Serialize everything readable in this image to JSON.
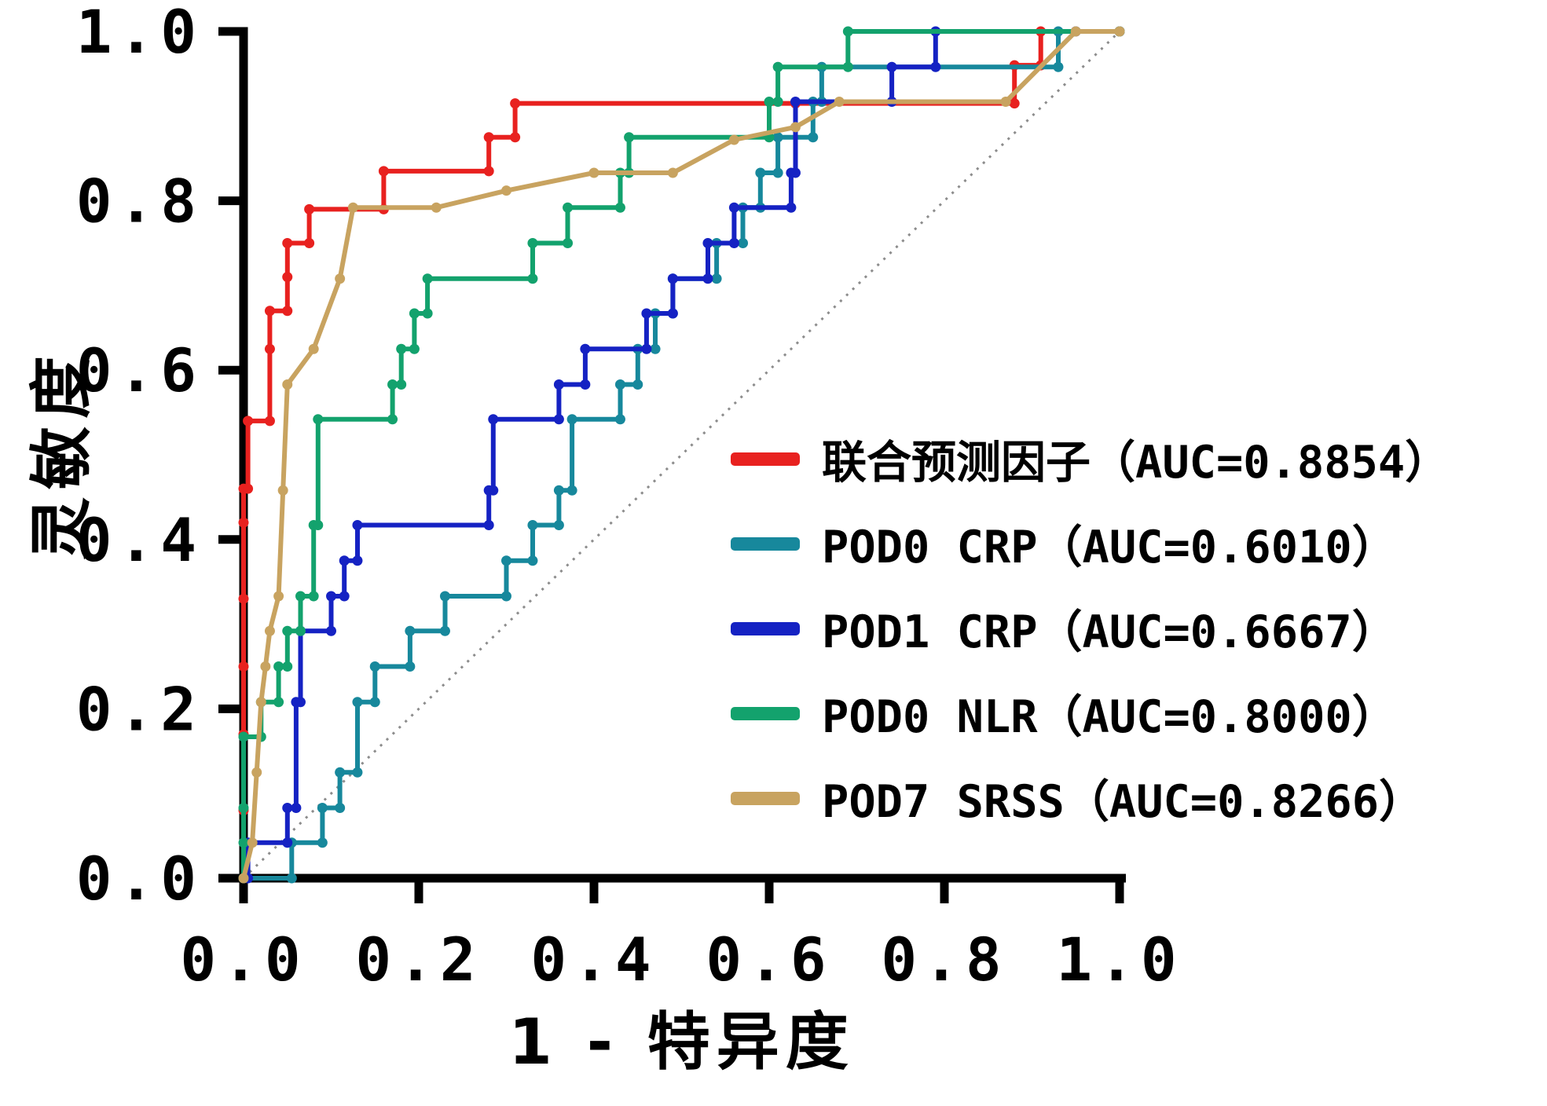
{
  "chart_data": {
    "type": "line",
    "subtype": "roc-curves",
    "title": "",
    "xlabel": "1 - 特异度",
    "ylabel": "灵敏度",
    "xlim": [
      0,
      1
    ],
    "ylim": [
      0,
      1
    ],
    "x_ticks": [
      "0.0",
      "0.2",
      "0.4",
      "0.6",
      "0.8",
      "1.0"
    ],
    "y_ticks": [
      "0.0",
      "0.2",
      "0.4",
      "0.6",
      "0.8",
      "1.0"
    ],
    "grid": false,
    "legend_position": "inside-right-middle",
    "reference_diagonal": {
      "from": [
        0,
        0
      ],
      "to": [
        1,
        1
      ],
      "style": "dotted",
      "color": "#8c8c8c"
    },
    "series": [
      {
        "name": "联合预测因子（AUC=0.8854）",
        "auc": 0.8854,
        "color": "#e8211f",
        "marker": "circle",
        "points": [
          [
            0,
            0
          ],
          [
            0,
            0.08
          ],
          [
            0,
            0.17
          ],
          [
            0,
            0.25
          ],
          [
            0,
            0.33
          ],
          [
            0,
            0.42
          ],
          [
            0,
            0.46
          ],
          [
            0.005,
            0.46
          ],
          [
            0.005,
            0.54
          ],
          [
            0.03,
            0.54
          ],
          [
            0.03,
            0.625
          ],
          [
            0.03,
            0.67
          ],
          [
            0.05,
            0.67
          ],
          [
            0.05,
            0.71
          ],
          [
            0.05,
            0.75
          ],
          [
            0.075,
            0.75
          ],
          [
            0.075,
            0.79
          ],
          [
            0.16,
            0.79
          ],
          [
            0.16,
            0.835
          ],
          [
            0.28,
            0.835
          ],
          [
            0.28,
            0.875
          ],
          [
            0.31,
            0.875
          ],
          [
            0.31,
            0.915
          ],
          [
            0.63,
            0.915
          ],
          [
            0.88,
            0.915
          ],
          [
            0.88,
            0.96
          ],
          [
            0.91,
            0.96
          ],
          [
            0.91,
            1.0
          ],
          [
            1.0,
            1.0
          ]
        ]
      },
      {
        "name": "POD0 CRP（AUC=0.6010）",
        "auc": 0.601,
        "color": "#17889c",
        "marker": "circle",
        "points": [
          [
            0,
            0
          ],
          [
            0.055,
            0
          ],
          [
            0.055,
            0.042
          ],
          [
            0.09,
            0.042
          ],
          [
            0.09,
            0.083
          ],
          [
            0.11,
            0.083
          ],
          [
            0.11,
            0.125
          ],
          [
            0.13,
            0.125
          ],
          [
            0.13,
            0.208
          ],
          [
            0.15,
            0.208
          ],
          [
            0.15,
            0.25
          ],
          [
            0.19,
            0.25
          ],
          [
            0.19,
            0.292
          ],
          [
            0.23,
            0.292
          ],
          [
            0.23,
            0.333
          ],
          [
            0.3,
            0.333
          ],
          [
            0.3,
            0.375
          ],
          [
            0.33,
            0.375
          ],
          [
            0.33,
            0.417
          ],
          [
            0.36,
            0.417
          ],
          [
            0.36,
            0.458
          ],
          [
            0.375,
            0.458
          ],
          [
            0.375,
            0.542
          ],
          [
            0.43,
            0.542
          ],
          [
            0.43,
            0.583
          ],
          [
            0.45,
            0.583
          ],
          [
            0.45,
            0.625
          ],
          [
            0.47,
            0.625
          ],
          [
            0.47,
            0.667
          ],
          [
            0.49,
            0.667
          ],
          [
            0.49,
            0.708
          ],
          [
            0.54,
            0.708
          ],
          [
            0.54,
            0.75
          ],
          [
            0.57,
            0.75
          ],
          [
            0.57,
            0.792
          ],
          [
            0.59,
            0.792
          ],
          [
            0.59,
            0.833
          ],
          [
            0.61,
            0.833
          ],
          [
            0.61,
            0.875
          ],
          [
            0.65,
            0.875
          ],
          [
            0.65,
            0.917
          ],
          [
            0.66,
            0.917
          ],
          [
            0.66,
            0.958
          ],
          [
            0.93,
            0.958
          ],
          [
            0.93,
            1.0
          ],
          [
            1.0,
            1.0
          ]
        ]
      },
      {
        "name": "POD1 CRP（AUC=0.6667）",
        "auc": 0.6667,
        "color": "#1522c3",
        "marker": "circle",
        "points": [
          [
            0,
            0
          ],
          [
            0.005,
            0
          ],
          [
            0.005,
            0.042
          ],
          [
            0.05,
            0.042
          ],
          [
            0.05,
            0.083
          ],
          [
            0.06,
            0.083
          ],
          [
            0.06,
            0.208
          ],
          [
            0.065,
            0.208
          ],
          [
            0.065,
            0.292
          ],
          [
            0.1,
            0.292
          ],
          [
            0.1,
            0.333
          ],
          [
            0.115,
            0.333
          ],
          [
            0.115,
            0.375
          ],
          [
            0.13,
            0.375
          ],
          [
            0.13,
            0.417
          ],
          [
            0.28,
            0.417
          ],
          [
            0.28,
            0.458
          ],
          [
            0.285,
            0.458
          ],
          [
            0.285,
            0.542
          ],
          [
            0.36,
            0.542
          ],
          [
            0.36,
            0.583
          ],
          [
            0.39,
            0.583
          ],
          [
            0.39,
            0.625
          ],
          [
            0.46,
            0.625
          ],
          [
            0.46,
            0.667
          ],
          [
            0.49,
            0.667
          ],
          [
            0.49,
            0.708
          ],
          [
            0.53,
            0.708
          ],
          [
            0.53,
            0.75
          ],
          [
            0.56,
            0.75
          ],
          [
            0.56,
            0.792
          ],
          [
            0.625,
            0.792
          ],
          [
            0.625,
            0.833
          ],
          [
            0.63,
            0.833
          ],
          [
            0.63,
            0.917
          ],
          [
            0.74,
            0.917
          ],
          [
            0.74,
            0.958
          ],
          [
            0.79,
            0.958
          ],
          [
            0.79,
            1.0
          ],
          [
            0.95,
            1.0
          ],
          [
            1.0,
            1.0
          ]
        ]
      },
      {
        "name": "POD0 NLR（AUC=0.8000）",
        "auc": 0.8,
        "color": "#13a26d",
        "marker": "circle",
        "points": [
          [
            0,
            0
          ],
          [
            0,
            0.042
          ],
          [
            0,
            0.083
          ],
          [
            0,
            0.167
          ],
          [
            0.02,
            0.167
          ],
          [
            0.02,
            0.208
          ],
          [
            0.04,
            0.208
          ],
          [
            0.04,
            0.25
          ],
          [
            0.05,
            0.25
          ],
          [
            0.05,
            0.292
          ],
          [
            0.065,
            0.292
          ],
          [
            0.065,
            0.333
          ],
          [
            0.08,
            0.333
          ],
          [
            0.08,
            0.417
          ],
          [
            0.085,
            0.417
          ],
          [
            0.085,
            0.542
          ],
          [
            0.17,
            0.542
          ],
          [
            0.17,
            0.583
          ],
          [
            0.18,
            0.583
          ],
          [
            0.18,
            0.625
          ],
          [
            0.195,
            0.625
          ],
          [
            0.195,
            0.667
          ],
          [
            0.21,
            0.667
          ],
          [
            0.21,
            0.708
          ],
          [
            0.33,
            0.708
          ],
          [
            0.33,
            0.75
          ],
          [
            0.37,
            0.75
          ],
          [
            0.37,
            0.792
          ],
          [
            0.43,
            0.792
          ],
          [
            0.43,
            0.833
          ],
          [
            0.44,
            0.833
          ],
          [
            0.44,
            0.875
          ],
          [
            0.6,
            0.875
          ],
          [
            0.6,
            0.917
          ],
          [
            0.61,
            0.917
          ],
          [
            0.61,
            0.958
          ],
          [
            0.69,
            0.958
          ],
          [
            0.69,
            1.0
          ],
          [
            1.0,
            1.0
          ]
        ]
      },
      {
        "name": "POD7 SRSS（AUC=0.8266）",
        "auc": 0.8266,
        "color": "#c8a360",
        "marker": "circle",
        "points": [
          [
            0,
            0
          ],
          [
            0.01,
            0.042
          ],
          [
            0.015,
            0.125
          ],
          [
            0.02,
            0.208
          ],
          [
            0.025,
            0.25
          ],
          [
            0.03,
            0.292
          ],
          [
            0.04,
            0.333
          ],
          [
            0.045,
            0.458
          ],
          [
            0.05,
            0.583
          ],
          [
            0.08,
            0.625
          ],
          [
            0.11,
            0.708
          ],
          [
            0.125,
            0.792
          ],
          [
            0.22,
            0.792
          ],
          [
            0.3,
            0.812
          ],
          [
            0.4,
            0.833
          ],
          [
            0.49,
            0.833
          ],
          [
            0.56,
            0.872
          ],
          [
            0.63,
            0.887
          ],
          [
            0.68,
            0.917
          ],
          [
            0.87,
            0.917
          ],
          [
            0.95,
            1.0
          ],
          [
            1.0,
            1.0
          ]
        ]
      }
    ]
  },
  "colors": {
    "axis": "#000000",
    "background": "#ffffff",
    "tick_label": "#000000"
  }
}
